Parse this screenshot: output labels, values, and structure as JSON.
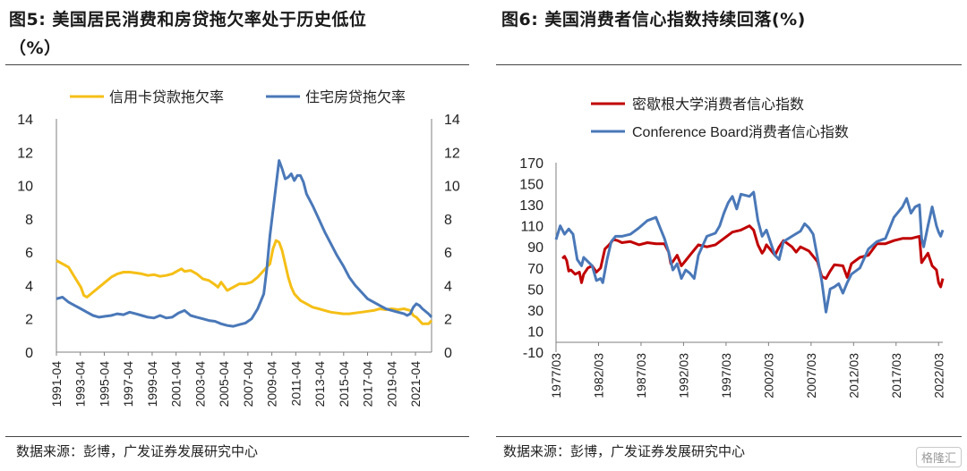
{
  "left": {
    "title_line1": "图5:  美国居民消费和房贷拖欠率处于历史低位",
    "title_line2": "（%）",
    "source": "数据来源：彭博，广发证券发展研究中心",
    "chart_data": {
      "type": "line",
      "legend_placement": "top",
      "y_ticks": [
        "0",
        "2",
        "4",
        "6",
        "8",
        "10",
        "12",
        "14"
      ],
      "ylim": [
        0,
        14
      ],
      "x_tick_labels": [
        "1991-04",
        "1993-04",
        "1995-04",
        "1997-04",
        "1999-04",
        "2001-04",
        "2003-04",
        "2005-04",
        "2007-04",
        "2009-04",
        "2011-04",
        "2013-04",
        "2015-04",
        "2017-04",
        "2019-04",
        "2021-04"
      ],
      "series": [
        {
          "name": "信用卡贷款拖欠率",
          "color": "#f5bf16",
          "x": [
            1991.25,
            1991.75,
            1992.25,
            1992.75,
            1993.25,
            1993.5,
            1993.75,
            1994.25,
            1994.75,
            1995.25,
            1995.75,
            1996.25,
            1996.75,
            1997.25,
            1997.75,
            1998.25,
            1998.75,
            1999.25,
            1999.75,
            2000.25,
            2000.75,
            2001.25,
            2001.5,
            2001.75,
            2002.25,
            2002.75,
            2003.25,
            2003.75,
            2004.25,
            2004.5,
            2004.75,
            2005.25,
            2005.75,
            2006.25,
            2006.75,
            2007.25,
            2007.75,
            2008.25,
            2008.75,
            2009.0,
            2009.25,
            2009.5,
            2009.75,
            2010.0,
            2010.25,
            2010.5,
            2010.75,
            2011.25,
            2011.75,
            2012.25,
            2012.75,
            2013.25,
            2013.75,
            2014.25,
            2014.75,
            2015.25,
            2015.75,
            2016.25,
            2016.75,
            2017.25,
            2017.75,
            2018.25,
            2018.75,
            2019.25,
            2019.75,
            2020.0,
            2020.25,
            2020.5,
            2020.75,
            2021.0,
            2021.25,
            2021.75,
            2022.0
          ],
          "values": [
            5.5,
            5.3,
            5.1,
            4.5,
            3.9,
            3.4,
            3.3,
            3.6,
            3.9,
            4.2,
            4.5,
            4.7,
            4.8,
            4.8,
            4.75,
            4.7,
            4.6,
            4.65,
            4.55,
            4.6,
            4.7,
            4.9,
            5.0,
            4.85,
            4.9,
            4.7,
            4.4,
            4.3,
            4.05,
            3.9,
            4.2,
            3.7,
            3.9,
            4.1,
            4.1,
            4.2,
            4.5,
            4.9,
            5.3,
            6.2,
            6.7,
            6.6,
            6.1,
            5.3,
            4.5,
            3.9,
            3.5,
            3.1,
            2.9,
            2.7,
            2.6,
            2.5,
            2.4,
            2.35,
            2.3,
            2.3,
            2.35,
            2.4,
            2.45,
            2.5,
            2.6,
            2.55,
            2.6,
            2.55,
            2.6,
            2.55,
            2.5,
            2.2,
            2.1,
            1.9,
            1.7,
            1.7,
            1.9
          ]
        },
        {
          "name": "住宅房贷拖欠率",
          "color": "#4a78b8",
          "x": [
            1991.25,
            1991.75,
            1992.25,
            1992.75,
            1993.25,
            1993.75,
            1994.25,
            1994.75,
            1995.25,
            1995.75,
            1996.25,
            1996.75,
            1997.25,
            1997.75,
            1998.25,
            1998.75,
            1999.25,
            1999.75,
            2000.25,
            2000.75,
            2001.25,
            2001.75,
            2002.25,
            2002.75,
            2003.25,
            2003.75,
            2004.25,
            2004.75,
            2005.25,
            2005.75,
            2006.25,
            2006.75,
            2007.25,
            2007.75,
            2008.25,
            2008.5,
            2008.75,
            2009.0,
            2009.25,
            2009.5,
            2009.75,
            2010.0,
            2010.25,
            2010.5,
            2010.75,
            2011.0,
            2011.25,
            2011.5,
            2011.75,
            2012.25,
            2012.75,
            2013.25,
            2013.75,
            2014.25,
            2014.75,
            2015.25,
            2015.75,
            2016.25,
            2016.75,
            2017.25,
            2017.75,
            2018.25,
            2018.75,
            2019.25,
            2019.75,
            2020.0,
            2020.25,
            2020.5,
            2020.75,
            2021.0,
            2021.25,
            2021.75,
            2022.0
          ],
          "values": [
            3.2,
            3.3,
            3.0,
            2.8,
            2.6,
            2.4,
            2.2,
            2.1,
            2.15,
            2.2,
            2.3,
            2.25,
            2.4,
            2.3,
            2.2,
            2.1,
            2.05,
            2.2,
            2.05,
            2.1,
            2.35,
            2.5,
            2.2,
            2.1,
            2.0,
            1.9,
            1.85,
            1.7,
            1.6,
            1.55,
            1.65,
            1.75,
            2.0,
            2.6,
            3.5,
            5.0,
            7.0,
            8.5,
            10.0,
            11.5,
            11.0,
            10.4,
            10.5,
            10.7,
            10.3,
            10.6,
            10.6,
            10.2,
            9.5,
            8.8,
            8.0,
            7.2,
            6.5,
            5.8,
            5.2,
            4.5,
            4.0,
            3.6,
            3.2,
            3.0,
            2.8,
            2.6,
            2.5,
            2.4,
            2.3,
            2.2,
            2.3,
            2.7,
            2.9,
            2.8,
            2.6,
            2.3,
            2.1
          ]
        }
      ]
    }
  },
  "right": {
    "title": "图6:  美国消费者信心指数持续回落(%)",
    "source": "数据来源：彭博，广发证券发展研究中心",
    "chart_data": {
      "type": "line",
      "legend_placement": "top-left",
      "y_ticks": [
        "-10",
        "10",
        "30",
        "50",
        "70",
        "90",
        "110",
        "130",
        "150",
        "170"
      ],
      "ylim": [
        -10,
        170
      ],
      "x_tick_labels": [
        "1977/03",
        "1982/03",
        "1987/03",
        "1992/03",
        "1997/03",
        "2002/03",
        "2007/03",
        "2012/03",
        "2017/03",
        "2022/03"
      ],
      "series": [
        {
          "name": "密歇根大学消费者信心指数",
          "color": "#c00000",
          "x": [
            1978.0,
            1978.25,
            1978.5,
            1978.75,
            1979.0,
            1979.5,
            1980.0,
            1980.25,
            1980.5,
            1981.0,
            1981.5,
            1982.0,
            1982.5,
            1983.0,
            1983.5,
            1984.0,
            1984.5,
            1985.0,
            1986.0,
            1987.0,
            1988.0,
            1989.0,
            1990.0,
            1990.5,
            1990.75,
            1991.0,
            1991.5,
            1992.0,
            1992.5,
            1993.0,
            1994.0,
            1995.0,
            1996.0,
            1997.0,
            1998.0,
            1999.0,
            2000.0,
            2000.5,
            2001.0,
            2001.5,
            2001.75,
            2002.0,
            2003.0,
            2003.5,
            2004.0,
            2005.0,
            2005.5,
            2006.0,
            2007.0,
            2008.0,
            2008.5,
            2009.0,
            2009.5,
            2010.0,
            2011.0,
            2011.5,
            2012.0,
            2013.0,
            2014.0,
            2015.0,
            2016.0,
            2017.0,
            2018.0,
            2019.0,
            2020.0,
            2020.25,
            2020.5,
            2021.0,
            2021.5,
            2022.0,
            2022.25,
            2022.5,
            2022.75
          ],
          "values": [
            79,
            81,
            77,
            67,
            68,
            64,
            66,
            56,
            64,
            70,
            72,
            66,
            70,
            88,
            92,
            97,
            96,
            94,
            95,
            92,
            94,
            93,
            93,
            85,
            74,
            76,
            82,
            72,
            77,
            82,
            92,
            90,
            92,
            98,
            104,
            106,
            110,
            106,
            92,
            84,
            87,
            92,
            82,
            90,
            96,
            90,
            85,
            90,
            86,
            76,
            62,
            60,
            67,
            73,
            72,
            61,
            74,
            80,
            82,
            93,
            93,
            96,
            98,
            98,
            100,
            75,
            78,
            84,
            72,
            68,
            56,
            52,
            60
          ]
        },
        {
          "name": "Conference Board消费者信心指数",
          "color": "#4a78b8",
          "x": [
            1977.25,
            1977.75,
            1978.25,
            1978.75,
            1979.25,
            1979.75,
            1980.25,
            1980.5,
            1981.0,
            1981.5,
            1982.0,
            1982.5,
            1982.75,
            1983.25,
            1983.75,
            1984.25,
            1985.0,
            1986.0,
            1987.0,
            1988.0,
            1989.0,
            1989.5,
            1990.0,
            1990.5,
            1991.0,
            1991.5,
            1992.0,
            1992.5,
            1993.0,
            1993.5,
            1994.0,
            1995.0,
            1996.0,
            1996.5,
            1997.0,
            1997.5,
            1998.0,
            1998.5,
            1999.0,
            2000.0,
            2000.5,
            2001.0,
            2001.5,
            2002.0,
            2002.5,
            2003.0,
            2003.5,
            2004.0,
            2005.0,
            2006.0,
            2006.5,
            2007.0,
            2007.5,
            2008.0,
            2008.5,
            2009.0,
            2009.5,
            2010.0,
            2010.5,
            2011.0,
            2011.5,
            2012.0,
            2013.0,
            2014.0,
            2015.0,
            2016.0,
            2017.0,
            2018.0,
            2018.5,
            2019.0,
            2019.5,
            2020.0,
            2020.25,
            2020.5,
            2021.0,
            2021.5,
            2022.0,
            2022.25,
            2022.5,
            2022.75
          ],
          "values": [
            97,
            110,
            102,
            107,
            102,
            78,
            72,
            80,
            76,
            72,
            58,
            60,
            56,
            78,
            95,
            100,
            100,
            102,
            108,
            115,
            118,
            108,
            98,
            85,
            68,
            74,
            60,
            68,
            65,
            60,
            82,
            100,
            103,
            110,
            122,
            132,
            138,
            126,
            140,
            138,
            142,
            115,
            100,
            106,
            94,
            82,
            78,
            95,
            100,
            105,
            112,
            108,
            102,
            80,
            58,
            28,
            50,
            52,
            55,
            46,
            56,
            64,
            70,
            88,
            95,
            98,
            118,
            128,
            136,
            122,
            128,
            130,
            98,
            90,
            110,
            128,
            110,
            104,
            100,
            106
          ]
        }
      ]
    }
  },
  "watermark": "格隆汇"
}
